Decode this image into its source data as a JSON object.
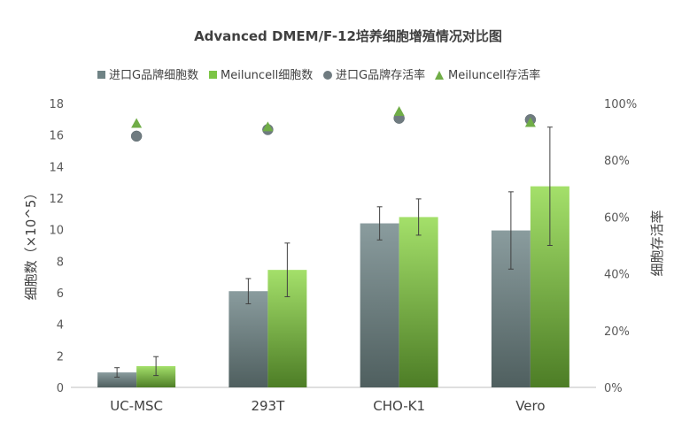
{
  "chart_data": {
    "type": "bar",
    "title": "Advanced DMEM/F-12培养细胞增殖情况对比图",
    "categories": [
      "UC-MSC",
      "293T",
      "CHO-K1",
      "Vero"
    ],
    "ylabel": "细胞数（×10^5）",
    "y2label": "细胞存活率",
    "ylim": [
      0,
      18
    ],
    "yticks": [
      "0",
      "2",
      "4",
      "6",
      "8",
      "10",
      "12",
      "14",
      "16",
      "18"
    ],
    "y2lim": [
      0,
      100
    ],
    "y2ticks": [
      "0%",
      "20%",
      "40%",
      "60%",
      "80%",
      "100%"
    ],
    "legend_position": "top",
    "grid": false,
    "series": [
      {
        "name": "进口G品牌细胞数",
        "kind": "bar",
        "axis": "left",
        "color": "#6f8385",
        "values": [
          0.95,
          6.1,
          10.4,
          9.95
        ],
        "error": [
          0.3,
          0.8,
          1.05,
          2.45
        ]
      },
      {
        "name": "Meiluncell细胞数",
        "kind": "bar",
        "axis": "left",
        "color": "#7cc545",
        "values": [
          1.35,
          7.45,
          10.8,
          12.75
        ],
        "error": [
          0.6,
          1.7,
          1.15,
          3.75
        ]
      },
      {
        "name": "进口G品牌存活率",
        "kind": "marker",
        "marker": "circle",
        "axis": "right",
        "color": "#6f7b80",
        "values": [
          88.5,
          90.8,
          94.8,
          94.3
        ]
      },
      {
        "name": "Meiluncell存活率",
        "kind": "marker",
        "marker": "triangle",
        "axis": "right",
        "color": "#70ad47",
        "values": [
          93.0,
          91.8,
          97.2,
          93.3
        ]
      }
    ]
  }
}
